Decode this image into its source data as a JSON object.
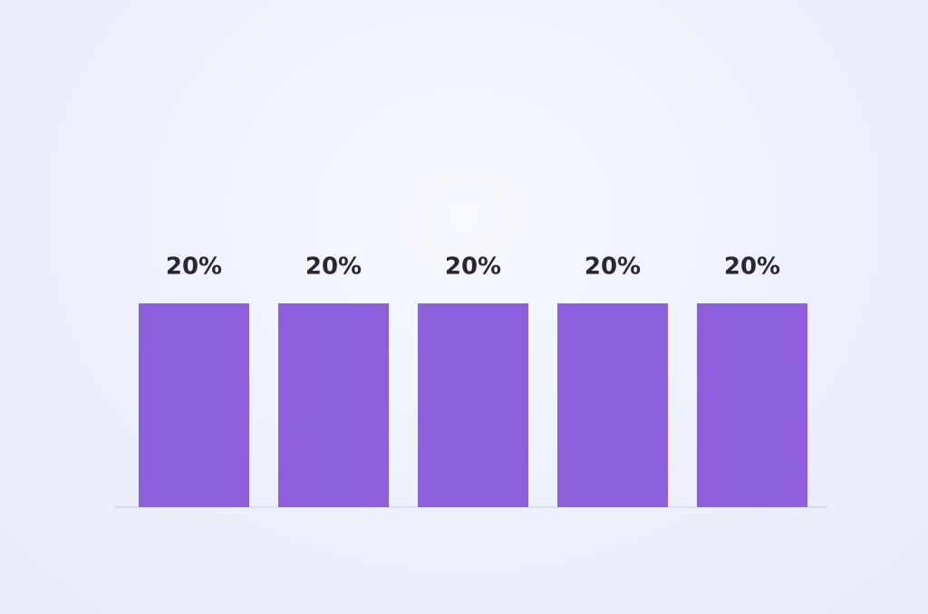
{
  "chart_data": {
    "type": "bar",
    "categories": [
      null,
      null,
      null,
      null,
      null
    ],
    "values": [
      20,
      20,
      20,
      20,
      20
    ],
    "value_labels": [
      "20%",
      "20%",
      "20%",
      "20%",
      "20%"
    ],
    "color": "#8e5fdc",
    "ylim": [
      0,
      20
    ]
  }
}
